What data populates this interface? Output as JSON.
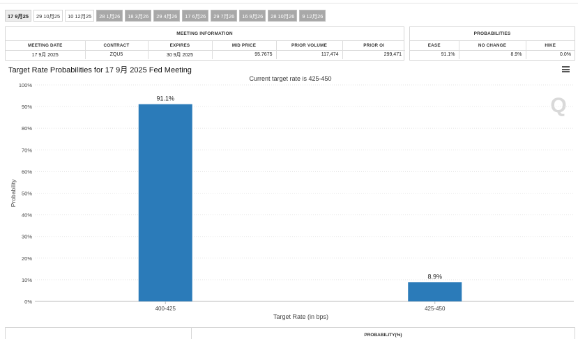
{
  "tabs": [
    {
      "label": "17 9月25",
      "state": "active"
    },
    {
      "label": "29 10月25",
      "state": "plain"
    },
    {
      "label": "10 12月25",
      "state": "plain"
    },
    {
      "label": "28 1月26",
      "state": "inactive"
    },
    {
      "label": "18 3月26",
      "state": "inactive"
    },
    {
      "label": "29 4月26",
      "state": "inactive"
    },
    {
      "label": "17 6月26",
      "state": "inactive"
    },
    {
      "label": "29 7月26",
      "state": "inactive"
    },
    {
      "label": "16 9月26",
      "state": "inactive"
    },
    {
      "label": "28 10月26",
      "state": "inactive"
    },
    {
      "label": "9 12月26",
      "state": "inactive"
    }
  ],
  "meeting_info": {
    "title": "MEETING INFORMATION",
    "headers": [
      "MEETING DATE",
      "CONTRACT",
      "EXPIRES",
      "MID PRICE",
      "PRIOR VOLUME",
      "PRIOR OI"
    ],
    "row": [
      "17 9月 2025",
      "ZQU5",
      "30 9月 2025",
      "95.7675",
      "117,474",
      "299,471"
    ]
  },
  "probabilities": {
    "title": "PROBABILITIES",
    "headers": [
      "EASE",
      "NO CHANGE",
      "HIKE"
    ],
    "row": [
      "91.1%",
      "8.9%",
      "0.0%"
    ]
  },
  "chart": {
    "title": "Target Rate Probabilities for 17 9月 2025 Fed Meeting",
    "logo": "Q"
  },
  "chart_data": {
    "type": "bar",
    "title": "Target Rate Probabilities for 17 9月 2025 Fed Meeting",
    "subtitle": "Current target rate is 425-450",
    "categories": [
      "400-425",
      "425-450"
    ],
    "values": [
      91.1,
      8.9
    ],
    "data_labels": [
      "91.1%",
      "8.9%"
    ],
    "xlabel": "Target Rate (in bps)",
    "ylabel": "Probability",
    "ylim": [
      0,
      100
    ],
    "yticks": [
      0,
      10,
      20,
      30,
      40,
      50,
      60,
      70,
      80,
      90,
      100
    ],
    "ytick_suffix": "%",
    "grid": true,
    "bar_color": "#2b7bb9"
  },
  "bottom_table": {
    "title": "PROBABILITY(%)"
  }
}
